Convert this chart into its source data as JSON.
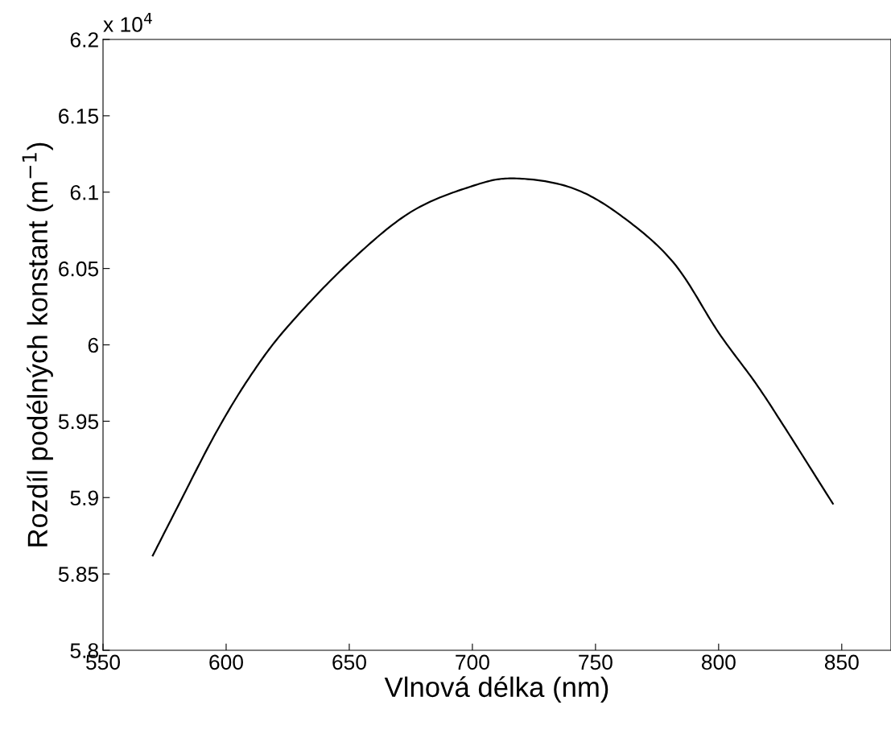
{
  "chart_data": {
    "type": "line",
    "xlabel": "Vlnová délka (nm)",
    "ylabel": "Rozdíl podélných konstant (m$^{−1}$)",
    "x": [
      570.2,
      580,
      595.7,
      610,
      625,
      650,
      675,
      700,
      717,
      740,
      760,
      781.6,
      800,
      815,
      826.8,
      846.4
    ],
    "series": [
      {
        "color": "#000000",
        "values": [
          5.862,
          5.893,
          5.942,
          5.98,
          6.012,
          6.054,
          6.087,
          6.104,
          6.109,
          6.103,
          6.085,
          6.054,
          6.008,
          5.975,
          5.946,
          5.896
        ]
      }
    ],
    "xlim": [
      550,
      870
    ],
    "xticks": [
      550,
      600,
      650,
      700,
      750,
      800,
      850
    ],
    "ylim": [
      5.8,
      6.2
    ],
    "yticks": [
      5.8,
      5.85,
      5.9,
      5.95,
      6,
      6.05,
      6.1,
      6.15,
      6.2
    ],
    "annotations": [
      "x 10$^{4}$"
    ],
    "grid": false,
    "legend": false,
    "marker": "none",
    "line_style": "solid"
  }
}
